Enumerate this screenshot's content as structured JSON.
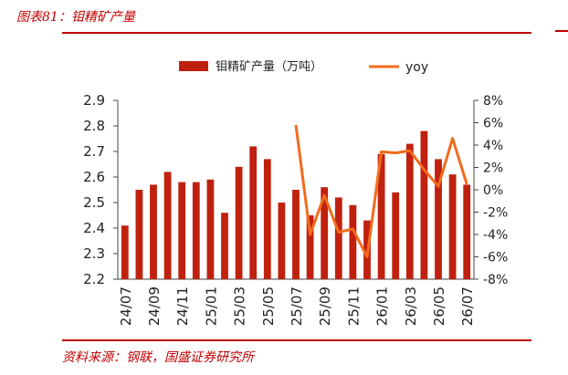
{
  "figure": {
    "title": "图表81：钼精矿产量",
    "source": "资料来源：钢联，国盛证券研究所"
  },
  "chart_data": {
    "type": "bar",
    "categories": [
      "24/07",
      "24/08",
      "24/09",
      "24/10",
      "24/11",
      "24/12",
      "25/01",
      "25/02",
      "25/03",
      "25/04",
      "25/05",
      "25/06",
      "25/07",
      "25/08",
      "25/09",
      "25/10",
      "25/11",
      "25/12",
      "26/01",
      "26/02",
      "26/03",
      "26/04",
      "26/05",
      "26/06",
      "26/07"
    ],
    "x_tick_labels": [
      "24/07",
      "24/09",
      "24/11",
      "25/01",
      "25/03",
      "25/05",
      "25/07",
      "25/09",
      "25/11",
      "26/01",
      "26/03",
      "26/05",
      "26/07"
    ],
    "series": [
      {
        "name": "钼精矿产量（万吨）",
        "type": "bar",
        "axis": "left",
        "color": "#c0210f",
        "values": [
          2.41,
          2.55,
          2.57,
          2.62,
          2.58,
          2.58,
          2.59,
          2.46,
          2.64,
          2.72,
          2.67,
          2.5,
          2.55,
          2.45,
          2.56,
          2.52,
          2.49,
          2.43,
          2.69,
          2.54,
          2.73,
          2.78,
          2.67,
          2.61,
          2.57
        ]
      },
      {
        "name": "yoy",
        "type": "line",
        "axis": "right",
        "color": "#f26b1d",
        "values": [
          null,
          null,
          null,
          null,
          null,
          null,
          null,
          null,
          null,
          null,
          null,
          null,
          5.8,
          -4.0,
          -0.5,
          -3.8,
          -3.5,
          -6.0,
          3.4,
          3.3,
          3.5,
          1.8,
          0.3,
          4.6,
          0.5
        ]
      }
    ],
    "y_left": {
      "min": 2.2,
      "max": 2.9,
      "ticks": [
        "2.9",
        "2.8",
        "2.7",
        "2.6",
        "2.5",
        "2.4",
        "2.3",
        "2.2"
      ]
    },
    "y_right": {
      "min": -8,
      "max": 8,
      "ticks": [
        "8%",
        "6%",
        "4%",
        "2%",
        "0%",
        "-2%",
        "-4%",
        "-6%",
        "-8%"
      ]
    },
    "legend_position": "top-center",
    "grid": false
  }
}
